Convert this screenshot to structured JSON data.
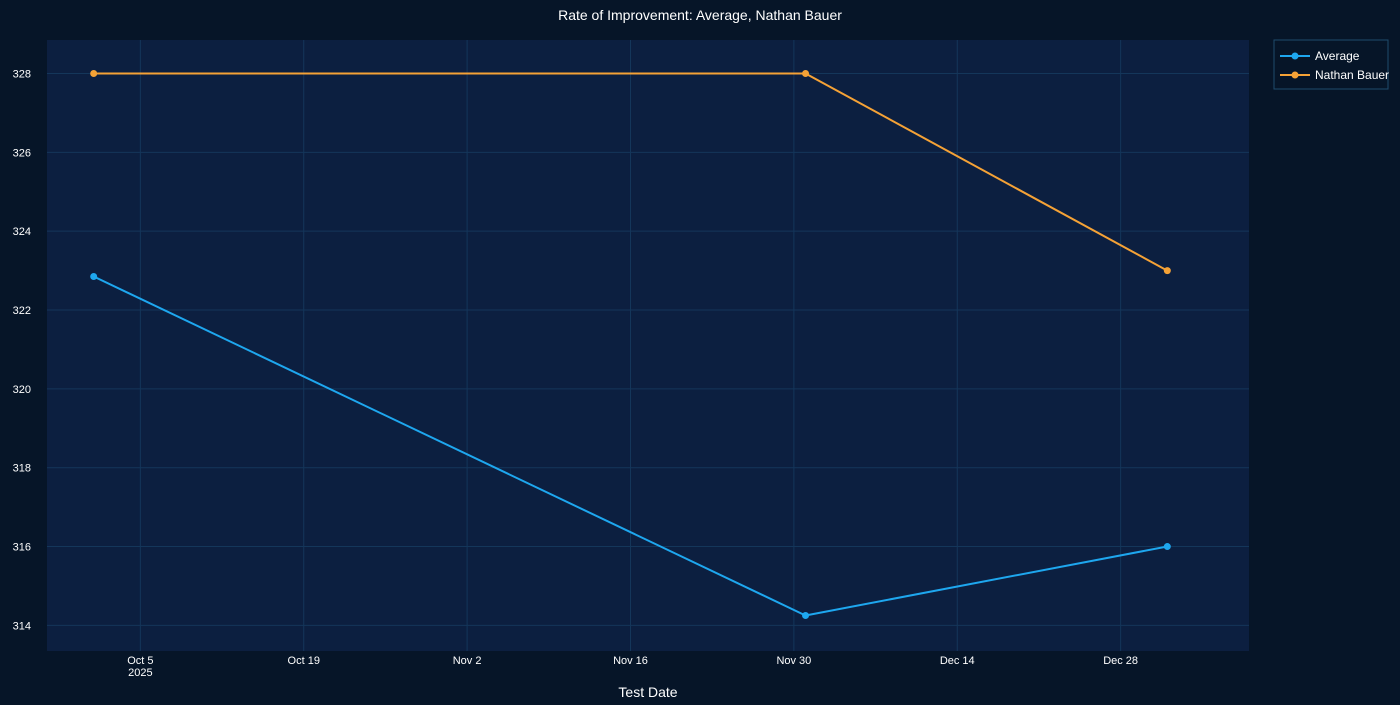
{
  "colors": {
    "page_background": "#061528",
    "plot_background": "#0c1f40",
    "gridline": "#14365a",
    "text": "#ffffff",
    "legend_border": "#1f4a6b"
  },
  "chart_data": {
    "type": "line",
    "title": "Rate of Improvement: Average, Nathan Bauer",
    "xlabel": "Test Date",
    "ylabel": "",
    "x_axis_type": "date",
    "xlim": [
      "2025-09-27",
      "2026-01-08"
    ],
    "ylim": [
      313.35,
      328.85
    ],
    "x_ticks": [
      {
        "value": "2025-10-05",
        "label": "Oct 5",
        "sublabel": "2025"
      },
      {
        "value": "2025-10-19",
        "label": "Oct 19",
        "sublabel": ""
      },
      {
        "value": "2025-11-02",
        "label": "Nov 2",
        "sublabel": ""
      },
      {
        "value": "2025-11-16",
        "label": "Nov 16",
        "sublabel": ""
      },
      {
        "value": "2025-11-30",
        "label": "Nov 30",
        "sublabel": ""
      },
      {
        "value": "2025-12-14",
        "label": "Dec 14",
        "sublabel": ""
      },
      {
        "value": "2025-12-28",
        "label": "Dec 28",
        "sublabel": ""
      }
    ],
    "y_ticks": [
      314,
      316,
      318,
      320,
      322,
      324,
      326,
      328
    ],
    "grid": true,
    "legend_position": "top-right",
    "series": [
      {
        "name": "Average",
        "color": "#1ea7ef",
        "points": [
          {
            "x": "2025-10-01",
            "y": 322.85
          },
          {
            "x": "2025-12-01",
            "y": 314.25
          },
          {
            "x": "2026-01-01",
            "y": 316.0
          }
        ]
      },
      {
        "name": "Nathan Bauer",
        "color": "#f5a236",
        "points": [
          {
            "x": "2025-10-01",
            "y": 328.0
          },
          {
            "x": "2025-12-01",
            "y": 328.0
          },
          {
            "x": "2026-01-01",
            "y": 323.0
          }
        ]
      }
    ]
  }
}
